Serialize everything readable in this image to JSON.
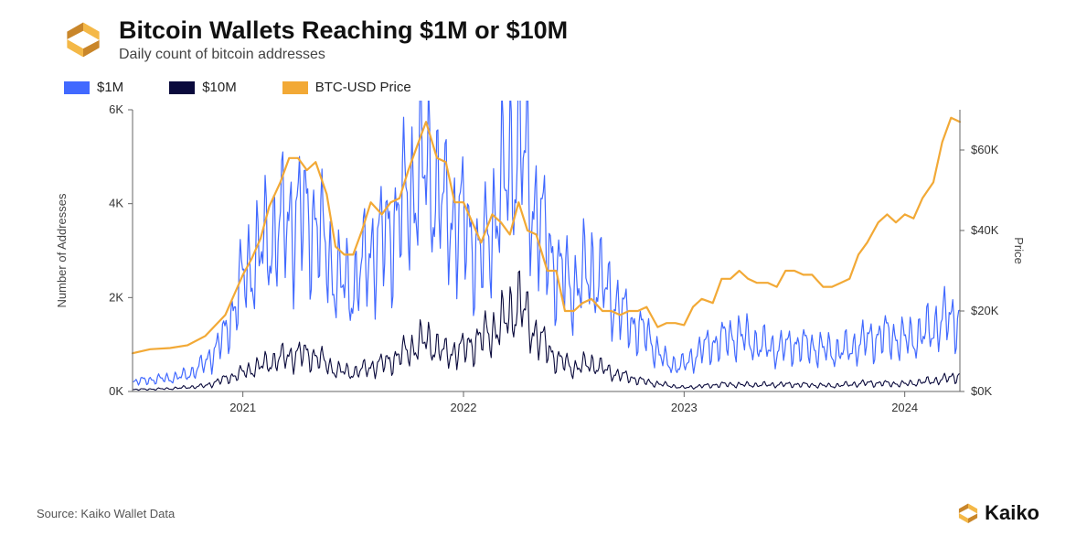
{
  "header": {
    "title": "Bitcoin Wallets Reaching $1M or $10M",
    "subtitle": "Daily count of bitcoin addresses"
  },
  "legend": {
    "series_1m": "$1M",
    "series_10m": "$10M",
    "series_price": "BTC-USD Price"
  },
  "chart": {
    "type": "line",
    "background_color": "#ffffff",
    "grid_color": "#b8b8b8",
    "axis_color": "#666666",
    "axis_font_size": 13,
    "label_font_size": 13,
    "left_axis": {
      "label": "Number of Addresses",
      "min": 0,
      "max": 6000,
      "ticks": [
        0,
        2000,
        4000,
        6000
      ],
      "tick_labels": [
        "0K",
        "2K",
        "4K",
        "6K"
      ]
    },
    "right_axis": {
      "label": "Price",
      "min": 0,
      "max": 70000,
      "ticks": [
        0,
        20000,
        40000,
        60000
      ],
      "tick_labels": [
        "$0K",
        "$20K",
        "$40K",
        "$60K"
      ]
    },
    "x_axis": {
      "start": 2020.5,
      "end": 2024.25,
      "ticks": [
        2021,
        2022,
        2023,
        2024
      ],
      "tick_labels": [
        "2021",
        "2022",
        "2023",
        "2024"
      ]
    },
    "colors": {
      "series_1m": "#4169ff",
      "series_10m": "#0a0a3c",
      "series_price": "#f2a936"
    },
    "line_width": {
      "series_1m": 1.2,
      "series_10m": 1.1,
      "series_price": 2.2
    },
    "series_price": [
      [
        2020.5,
        9500
      ],
      [
        2020.58,
        10500
      ],
      [
        2020.67,
        10800
      ],
      [
        2020.75,
        11500
      ],
      [
        2020.83,
        13800
      ],
      [
        2020.92,
        19000
      ],
      [
        2021.0,
        29000
      ],
      [
        2021.04,
        33000
      ],
      [
        2021.08,
        38000
      ],
      [
        2021.12,
        46000
      ],
      [
        2021.17,
        52000
      ],
      [
        2021.21,
        58000
      ],
      [
        2021.25,
        58000
      ],
      [
        2021.29,
        55000
      ],
      [
        2021.33,
        57000
      ],
      [
        2021.38,
        49000
      ],
      [
        2021.42,
        36000
      ],
      [
        2021.46,
        34000
      ],
      [
        2021.5,
        34000
      ],
      [
        2021.54,
        40000
      ],
      [
        2021.58,
        47000
      ],
      [
        2021.63,
        44000
      ],
      [
        2021.67,
        47000
      ],
      [
        2021.71,
        48000
      ],
      [
        2021.75,
        55000
      ],
      [
        2021.79,
        61000
      ],
      [
        2021.83,
        67000
      ],
      [
        2021.88,
        58000
      ],
      [
        2021.92,
        57000
      ],
      [
        2021.96,
        47000
      ],
      [
        2022.0,
        47000
      ],
      [
        2022.04,
        42000
      ],
      [
        2022.08,
        37000
      ],
      [
        2022.13,
        44000
      ],
      [
        2022.17,
        42000
      ],
      [
        2022.21,
        39000
      ],
      [
        2022.25,
        47000
      ],
      [
        2022.29,
        40000
      ],
      [
        2022.33,
        39000
      ],
      [
        2022.38,
        30000
      ],
      [
        2022.42,
        30000
      ],
      [
        2022.46,
        20000
      ],
      [
        2022.5,
        20000
      ],
      [
        2022.54,
        22000
      ],
      [
        2022.58,
        23000
      ],
      [
        2022.63,
        20000
      ],
      [
        2022.67,
        20000
      ],
      [
        2022.71,
        19000
      ],
      [
        2022.75,
        20000
      ],
      [
        2022.79,
        20000
      ],
      [
        2022.83,
        21000
      ],
      [
        2022.88,
        16000
      ],
      [
        2022.92,
        17000
      ],
      [
        2022.96,
        17000
      ],
      [
        2023.0,
        16500
      ],
      [
        2023.04,
        21000
      ],
      [
        2023.08,
        23000
      ],
      [
        2023.13,
        22000
      ],
      [
        2023.17,
        28000
      ],
      [
        2023.21,
        28000
      ],
      [
        2023.25,
        30000
      ],
      [
        2023.29,
        28000
      ],
      [
        2023.33,
        27000
      ],
      [
        2023.38,
        27000
      ],
      [
        2023.42,
        26000
      ],
      [
        2023.46,
        30000
      ],
      [
        2023.5,
        30000
      ],
      [
        2023.54,
        29000
      ],
      [
        2023.58,
        29000
      ],
      [
        2023.63,
        26000
      ],
      [
        2023.67,
        26000
      ],
      [
        2023.71,
        27000
      ],
      [
        2023.75,
        28000
      ],
      [
        2023.79,
        34000
      ],
      [
        2023.83,
        37000
      ],
      [
        2023.88,
        42000
      ],
      [
        2023.92,
        44000
      ],
      [
        2023.96,
        42000
      ],
      [
        2024.0,
        44000
      ],
      [
        2024.04,
        43000
      ],
      [
        2024.08,
        48000
      ],
      [
        2024.13,
        52000
      ],
      [
        2024.17,
        62000
      ],
      [
        2024.21,
        68000
      ],
      [
        2024.25,
        67000
      ]
    ],
    "series_1m_base": [
      [
        2020.5,
        200
      ],
      [
        2020.58,
        250
      ],
      [
        2020.67,
        280
      ],
      [
        2020.75,
        350
      ],
      [
        2020.83,
        600
      ],
      [
        2020.92,
        1200
      ],
      [
        2021.0,
        2400
      ],
      [
        2021.08,
        3000
      ],
      [
        2021.17,
        3500
      ],
      [
        2021.25,
        3800
      ],
      [
        2021.33,
        3600
      ],
      [
        2021.42,
        2400
      ],
      [
        2021.5,
        2200
      ],
      [
        2021.58,
        3000
      ],
      [
        2021.67,
        3400
      ],
      [
        2021.75,
        4200
      ],
      [
        2021.83,
        4800
      ],
      [
        2021.92,
        3800
      ],
      [
        2022.0,
        3600
      ],
      [
        2022.08,
        2800
      ],
      [
        2022.17,
        4200
      ],
      [
        2022.25,
        5400
      ],
      [
        2022.33,
        3800
      ],
      [
        2022.42,
        2600
      ],
      [
        2022.5,
        2200
      ],
      [
        2022.58,
        2600
      ],
      [
        2022.67,
        2000
      ],
      [
        2022.75,
        1500
      ],
      [
        2022.83,
        1200
      ],
      [
        2022.92,
        600
      ],
      [
        2023.0,
        550
      ],
      [
        2023.08,
        900
      ],
      [
        2023.17,
        1100
      ],
      [
        2023.25,
        1200
      ],
      [
        2023.33,
        1000
      ],
      [
        2023.42,
        900
      ],
      [
        2023.5,
        1000
      ],
      [
        2023.58,
        950
      ],
      [
        2023.67,
        850
      ],
      [
        2023.75,
        900
      ],
      [
        2023.83,
        1100
      ],
      [
        2023.92,
        1200
      ],
      [
        2024.0,
        1100
      ],
      [
        2024.08,
        1200
      ],
      [
        2024.17,
        1500
      ],
      [
        2024.25,
        1600
      ]
    ],
    "series_10m_base": [
      [
        2020.5,
        40
      ],
      [
        2020.67,
        60
      ],
      [
        2020.83,
        120
      ],
      [
        2021.0,
        400
      ],
      [
        2021.17,
        700
      ],
      [
        2021.25,
        800
      ],
      [
        2021.33,
        750
      ],
      [
        2021.42,
        450
      ],
      [
        2021.5,
        400
      ],
      [
        2021.67,
        650
      ],
      [
        2021.83,
        1100
      ],
      [
        2021.92,
        800
      ],
      [
        2022.0,
        900
      ],
      [
        2022.17,
        1400
      ],
      [
        2022.25,
        1900
      ],
      [
        2022.33,
        1200
      ],
      [
        2022.42,
        700
      ],
      [
        2022.5,
        500
      ],
      [
        2022.58,
        600
      ],
      [
        2022.67,
        400
      ],
      [
        2022.75,
        300
      ],
      [
        2022.83,
        200
      ],
      [
        2023.0,
        80
      ],
      [
        2023.17,
        150
      ],
      [
        2023.33,
        140
      ],
      [
        2023.5,
        150
      ],
      [
        2023.67,
        120
      ],
      [
        2023.83,
        180
      ],
      [
        2024.0,
        160
      ],
      [
        2024.17,
        250
      ],
      [
        2024.25,
        350
      ]
    ],
    "noise_1m": 0.55,
    "noise_10m": 0.55,
    "noise_freq": 95
  },
  "footer": {
    "source": "Source: Kaiko Wallet Data",
    "brand": "Kaiko"
  },
  "logo_colors": {
    "dark": "#c9862a",
    "light": "#f4b847"
  }
}
